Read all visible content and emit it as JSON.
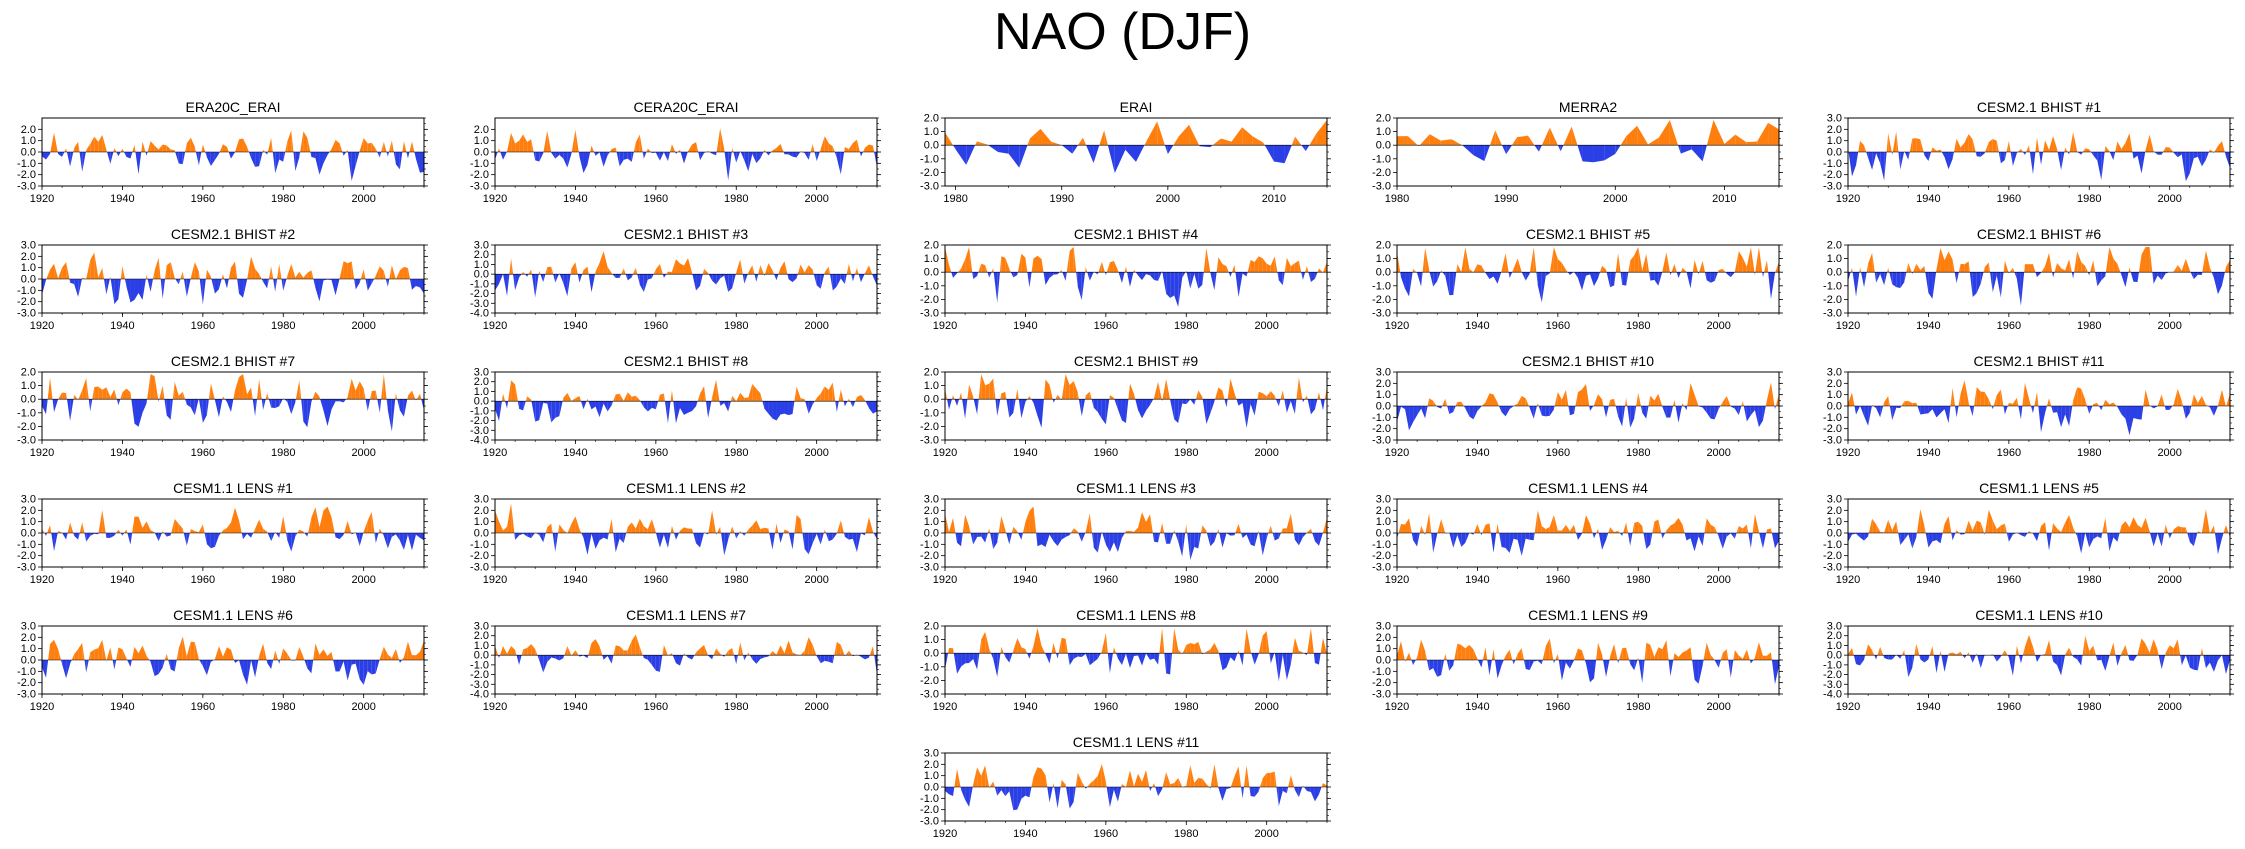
{
  "figure": {
    "title": "NAO (DJF)"
  },
  "colors": {
    "positive": "#ff7f0e",
    "negative": "#2b3fe6",
    "axis": "#000000"
  },
  "chart_data": [
    {
      "title": "ERA20C_ERAI",
      "type": "area",
      "x_start": 1920,
      "x_end": 2015,
      "xticks": [
        1920,
        1940,
        1960,
        1980,
        2000
      ],
      "ylim": [
        -3,
        3
      ],
      "yticks": [
        2.0,
        1.0,
        0.0,
        -1.0,
        -2.0,
        -3.0
      ],
      "seed": 11
    },
    {
      "title": "CERA20C_ERAI",
      "type": "area",
      "x_start": 1920,
      "x_end": 2015,
      "xticks": [
        1920,
        1940,
        1960,
        1980,
        2000
      ],
      "ylim": [
        -3,
        3
      ],
      "yticks": [
        2.0,
        1.0,
        0.0,
        -1.0,
        -2.0,
        -3.0
      ],
      "seed": 12
    },
    {
      "title": "ERAI",
      "type": "area",
      "x_start": 1979,
      "x_end": 2015,
      "xticks": [
        1980,
        1990,
        2000,
        2010
      ],
      "ylim": [
        -3,
        2
      ],
      "yticks": [
        2.0,
        1.0,
        0.0,
        -1.0,
        -2.0,
        -3.0
      ],
      "seed": 13
    },
    {
      "title": "MERRA2",
      "type": "area",
      "x_start": 1980,
      "x_end": 2015,
      "xticks": [
        1980,
        1990,
        2000,
        2010
      ],
      "ylim": [
        -3,
        2
      ],
      "yticks": [
        2.0,
        1.0,
        0.0,
        -1.0,
        -2.0,
        -3.0
      ],
      "seed": 14
    },
    {
      "title": "CESM2.1 BHIST #1",
      "type": "area",
      "x_start": 1920,
      "x_end": 2015,
      "xticks": [
        1920,
        1940,
        1960,
        1980,
        2000
      ],
      "ylim": [
        -3,
        3
      ],
      "yticks": [
        3.0,
        2.0,
        1.0,
        0.0,
        -1.0,
        -2.0,
        -3.0
      ],
      "seed": 15
    },
    {
      "title": "CESM2.1 BHIST #2",
      "type": "area",
      "x_start": 1920,
      "x_end": 2015,
      "xticks": [
        1920,
        1940,
        1960,
        1980,
        2000
      ],
      "ylim": [
        -3,
        3
      ],
      "yticks": [
        3.0,
        2.0,
        1.0,
        0.0,
        -1.0,
        -2.0,
        -3.0
      ],
      "seed": 21
    },
    {
      "title": "CESM2.1 BHIST #3",
      "type": "area",
      "x_start": 1920,
      "x_end": 2015,
      "xticks": [
        1920,
        1940,
        1960,
        1980,
        2000
      ],
      "ylim": [
        -4,
        3
      ],
      "yticks": [
        3.0,
        2.0,
        1.0,
        0.0,
        -1.0,
        -2.0,
        -3.0,
        -4.0
      ],
      "seed": 22
    },
    {
      "title": "CESM2.1 BHIST #4",
      "type": "area",
      "x_start": 1920,
      "x_end": 2015,
      "xticks": [
        1920,
        1940,
        1960,
        1980,
        2000
      ],
      "ylim": [
        -3,
        2
      ],
      "yticks": [
        2.0,
        1.0,
        0.0,
        -1.0,
        -2.0,
        -3.0
      ],
      "seed": 23
    },
    {
      "title": "CESM2.1 BHIST #5",
      "type": "area",
      "x_start": 1920,
      "x_end": 2015,
      "xticks": [
        1920,
        1940,
        1960,
        1980,
        2000
      ],
      "ylim": [
        -3,
        2
      ],
      "yticks": [
        2.0,
        1.0,
        0.0,
        -1.0,
        -2.0,
        -3.0
      ],
      "seed": 24
    },
    {
      "title": "CESM2.1 BHIST #6",
      "type": "area",
      "x_start": 1920,
      "x_end": 2015,
      "xticks": [
        1920,
        1940,
        1960,
        1980,
        2000
      ],
      "ylim": [
        -3,
        2
      ],
      "yticks": [
        2.0,
        1.0,
        0.0,
        -1.0,
        -2.0,
        -3.0
      ],
      "seed": 25
    },
    {
      "title": "CESM2.1 BHIST #7",
      "type": "area",
      "x_start": 1920,
      "x_end": 2015,
      "xticks": [
        1920,
        1940,
        1960,
        1980,
        2000
      ],
      "ylim": [
        -3,
        2
      ],
      "yticks": [
        2.0,
        1.0,
        0.0,
        -1.0,
        -2.0,
        -3.0
      ],
      "seed": 31
    },
    {
      "title": "CESM2.1 BHIST #8",
      "type": "area",
      "x_start": 1920,
      "x_end": 2015,
      "xticks": [
        1920,
        1940,
        1960,
        1980,
        2000
      ],
      "ylim": [
        -4,
        3
      ],
      "yticks": [
        3.0,
        2.0,
        1.0,
        0.0,
        -1.0,
        -2.0,
        -3.0,
        -4.0
      ],
      "seed": 32
    },
    {
      "title": "CESM2.1 BHIST #9",
      "type": "area",
      "x_start": 1920,
      "x_end": 2015,
      "xticks": [
        1920,
        1940,
        1960,
        1980,
        2000
      ],
      "ylim": [
        -3,
        2
      ],
      "yticks": [
        2.0,
        1.0,
        0.0,
        -1.0,
        -2.0,
        -3.0
      ],
      "seed": 33
    },
    {
      "title": "CESM2.1 BHIST #10",
      "type": "area",
      "x_start": 1920,
      "x_end": 2015,
      "xticks": [
        1920,
        1940,
        1960,
        1980,
        2000
      ],
      "ylim": [
        -3,
        3
      ],
      "yticks": [
        3.0,
        2.0,
        1.0,
        0.0,
        -1.0,
        -2.0,
        -3.0
      ],
      "seed": 34
    },
    {
      "title": "CESM2.1 BHIST #11",
      "type": "area",
      "x_start": 1920,
      "x_end": 2015,
      "xticks": [
        1920,
        1940,
        1960,
        1980,
        2000
      ],
      "ylim": [
        -3,
        3
      ],
      "yticks": [
        3.0,
        2.0,
        1.0,
        0.0,
        -1.0,
        -2.0,
        -3.0
      ],
      "seed": 35
    },
    {
      "title": "CESM1.1 LENS #1",
      "type": "area",
      "x_start": 1920,
      "x_end": 2015,
      "xticks": [
        1920,
        1940,
        1960,
        1980,
        2000
      ],
      "ylim": [
        -3,
        3
      ],
      "yticks": [
        3.0,
        2.0,
        1.0,
        0.0,
        -1.0,
        -2.0,
        -3.0
      ],
      "seed": 41
    },
    {
      "title": "CESM1.1 LENS #2",
      "type": "area",
      "x_start": 1920,
      "x_end": 2015,
      "xticks": [
        1920,
        1940,
        1960,
        1980,
        2000
      ],
      "ylim": [
        -3,
        3
      ],
      "yticks": [
        3.0,
        2.0,
        1.0,
        0.0,
        -1.0,
        -2.0,
        -3.0
      ],
      "seed": 42
    },
    {
      "title": "CESM1.1 LENS #3",
      "type": "area",
      "x_start": 1920,
      "x_end": 2015,
      "xticks": [
        1920,
        1940,
        1960,
        1980,
        2000
      ],
      "ylim": [
        -3,
        3
      ],
      "yticks": [
        3.0,
        2.0,
        1.0,
        0.0,
        -1.0,
        -2.0,
        -3.0
      ],
      "seed": 43
    },
    {
      "title": "CESM1.1 LENS #4",
      "type": "area",
      "x_start": 1920,
      "x_end": 2015,
      "xticks": [
        1920,
        1940,
        1960,
        1980,
        2000
      ],
      "ylim": [
        -3,
        3
      ],
      "yticks": [
        3.0,
        2.0,
        1.0,
        0.0,
        -1.0,
        -2.0,
        -3.0
      ],
      "seed": 44
    },
    {
      "title": "CESM1.1 LENS #5",
      "type": "area",
      "x_start": 1920,
      "x_end": 2015,
      "xticks": [
        1920,
        1940,
        1960,
        1980,
        2000
      ],
      "ylim": [
        -3,
        3
      ],
      "yticks": [
        3.0,
        2.0,
        1.0,
        0.0,
        -1.0,
        -2.0,
        -3.0
      ],
      "seed": 45
    },
    {
      "title": "CESM1.1 LENS #6",
      "type": "area",
      "x_start": 1920,
      "x_end": 2015,
      "xticks": [
        1920,
        1940,
        1960,
        1980,
        2000
      ],
      "ylim": [
        -3,
        3
      ],
      "yticks": [
        3.0,
        2.0,
        1.0,
        0.0,
        -1.0,
        -2.0,
        -3.0
      ],
      "seed": 51
    },
    {
      "title": "CESM1.1 LENS #7",
      "type": "area",
      "x_start": 1920,
      "x_end": 2015,
      "xticks": [
        1920,
        1940,
        1960,
        1980,
        2000
      ],
      "ylim": [
        -4,
        3
      ],
      "yticks": [
        3.0,
        2.0,
        1.0,
        0.0,
        -1.0,
        -2.0,
        -3.0,
        -4.0
      ],
      "seed": 52
    },
    {
      "title": "CESM1.1 LENS #8",
      "type": "area",
      "x_start": 1920,
      "x_end": 2015,
      "xticks": [
        1920,
        1940,
        1960,
        1980,
        2000
      ],
      "ylim": [
        -3,
        2
      ],
      "yticks": [
        2.0,
        1.0,
        0.0,
        -1.0,
        -2.0,
        -3.0
      ],
      "seed": 53
    },
    {
      "title": "CESM1.1 LENS #9",
      "type": "area",
      "x_start": 1920,
      "x_end": 2015,
      "xticks": [
        1920,
        1940,
        1960,
        1980,
        2000
      ],
      "ylim": [
        -3,
        3
      ],
      "yticks": [
        3.0,
        2.0,
        1.0,
        0.0,
        -1.0,
        -2.0,
        -3.0
      ],
      "seed": 54
    },
    {
      "title": "CESM1.1 LENS #10",
      "type": "area",
      "x_start": 1920,
      "x_end": 2015,
      "xticks": [
        1920,
        1940,
        1960,
        1980,
        2000
      ],
      "ylim": [
        -4,
        3
      ],
      "yticks": [
        3.0,
        2.0,
        1.0,
        0.0,
        -1.0,
        -2.0,
        -3.0,
        -4.0
      ],
      "seed": 55
    },
    {
      "title": "CESM1.1 LENS #11",
      "type": "area",
      "x_start": 1920,
      "x_end": 2015,
      "xticks": [
        1920,
        1940,
        1960,
        1980,
        2000
      ],
      "ylim": [
        -3,
        3
      ],
      "yticks": [
        3.0,
        2.0,
        1.0,
        0.0,
        -1.0,
        -2.0,
        -3.0
      ],
      "seed": 63
    }
  ]
}
